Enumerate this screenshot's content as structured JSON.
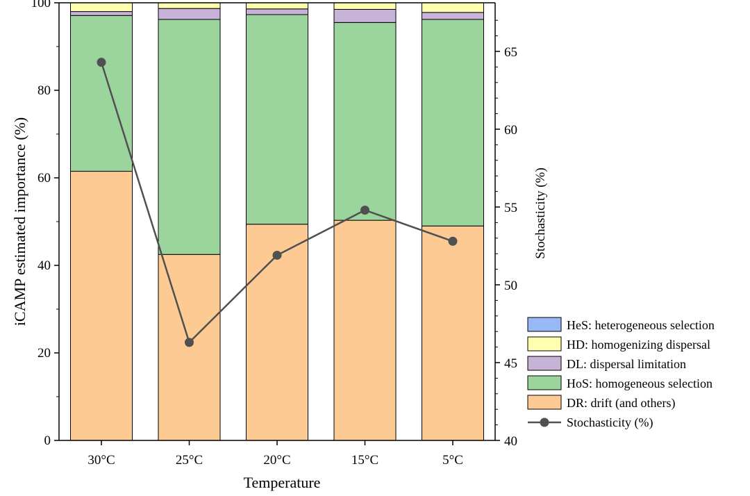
{
  "chart_data": {
    "type": "bar",
    "stacked": true,
    "xlabel": "Temperature",
    "ylabel": "iCAMP estimated importance (%)",
    "y2label": "Stochasticity (%)",
    "ylim": [
      0,
      100
    ],
    "y2lim": [
      40,
      67
    ],
    "yticks": [
      "0",
      "20",
      "40",
      "60",
      "80",
      "100"
    ],
    "y2ticks": [
      "40",
      "45",
      "50",
      "55",
      "60",
      "65"
    ],
    "categories": [
      "30°C",
      "25°C",
      "20°C",
      "15°C",
      "5°C"
    ],
    "series": [
      {
        "name": "DR: drift (and others)",
        "color": "#fdca93",
        "values": [
          61.5,
          42.5,
          49.4,
          50.3,
          49.0
        ]
      },
      {
        "name": "HoS: homogeneous selection",
        "color": "#9bd59d",
        "values": [
          35.6,
          53.7,
          47.9,
          45.2,
          47.2
        ]
      },
      {
        "name": "DL: dispersal limitation",
        "color": "#c8b3d8",
        "values": [
          0.9,
          2.5,
          1.3,
          3.0,
          1.6
        ]
      },
      {
        "name": "HD: homogenizing dispersal",
        "color": "#ffffb0",
        "values": [
          2.0,
          1.3,
          1.4,
          1.5,
          2.2
        ]
      },
      {
        "name": "HeS: heterogeneous selection",
        "color": "#99b9f6",
        "values": [
          0,
          0,
          0,
          0,
          0
        ]
      }
    ],
    "line": {
      "name": "Stochasticity (%)",
      "color": "#505050",
      "axis": "right",
      "values": [
        64.3,
        46.3,
        51.9,
        54.8,
        52.8
      ]
    },
    "legend": {
      "position": "right",
      "order": [
        "HeS: heterogeneous selection",
        "HD: homogenizing dispersal",
        "DL: dispersal limitation",
        "HoS: homogeneous selection",
        "DR: drift (and others)",
        "Stochasticity (%)"
      ]
    }
  }
}
